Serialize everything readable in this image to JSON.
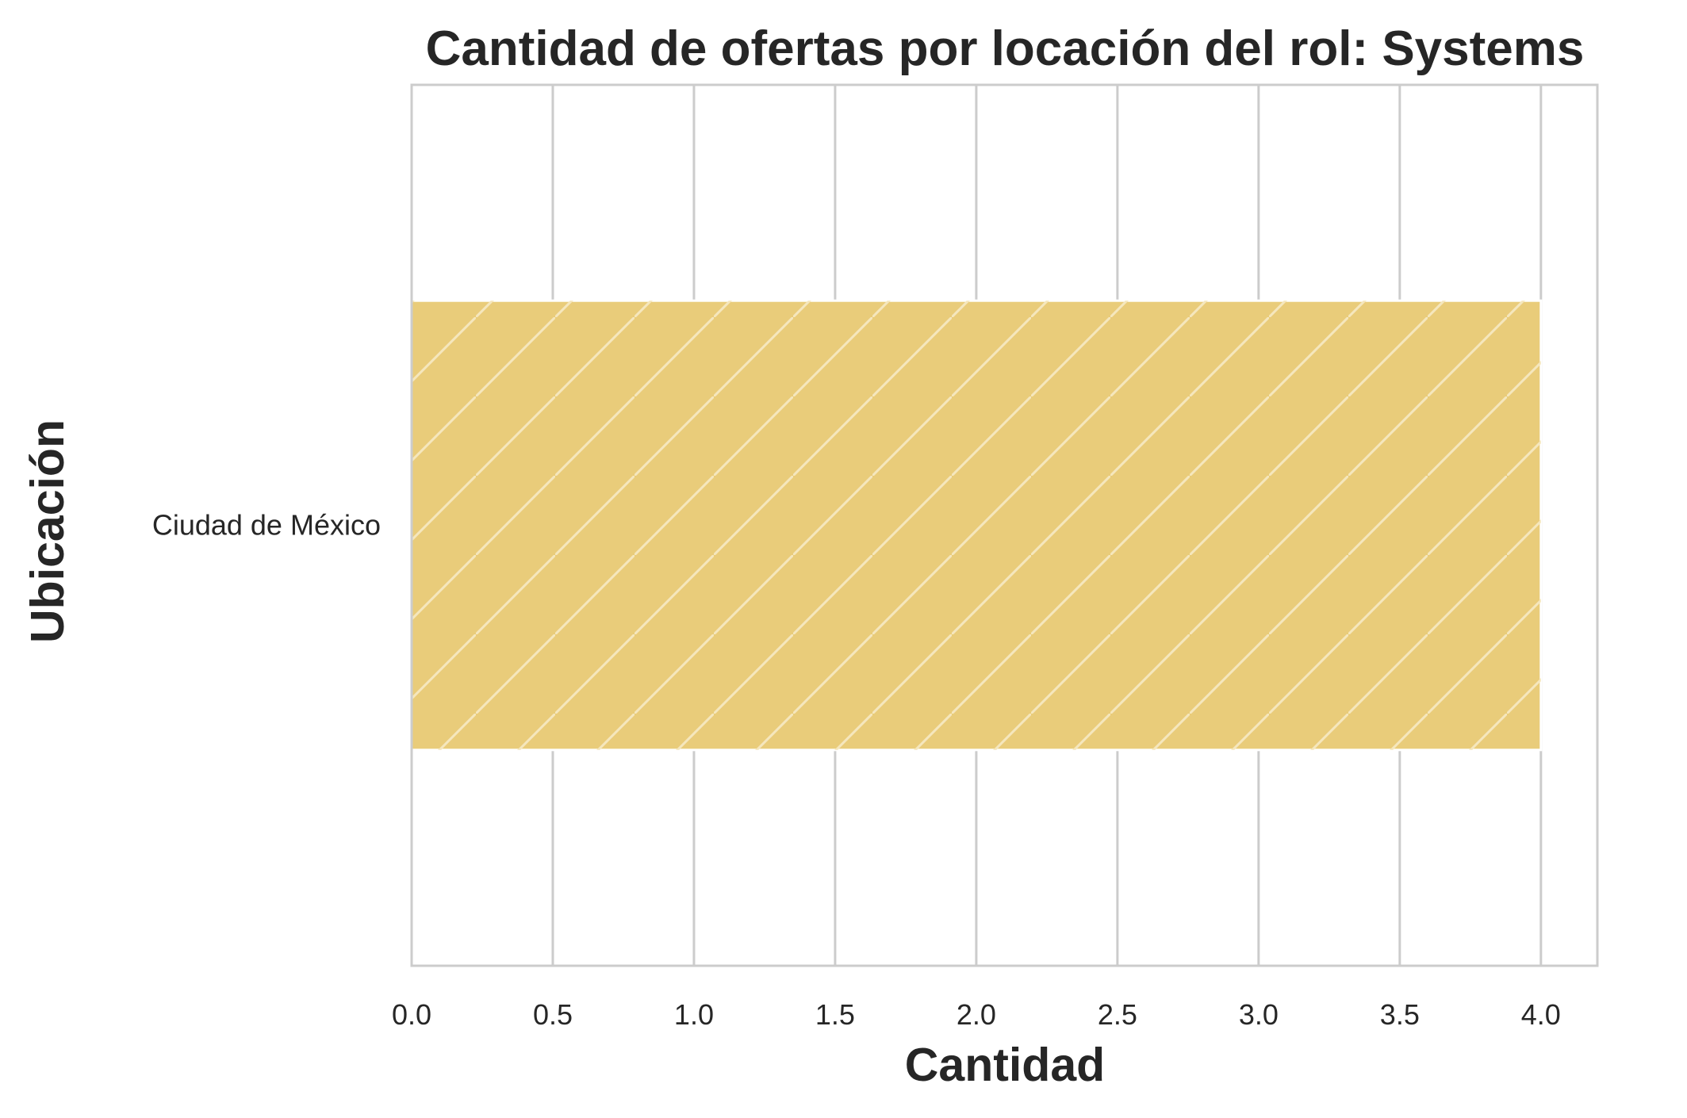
{
  "chart_data": {
    "type": "bar",
    "orientation": "horizontal",
    "title": "Cantidad de ofertas por locación del rol: Systems",
    "xlabel": "Cantidad",
    "ylabel": "Ubicación",
    "categories": [
      "Ciudad de México"
    ],
    "values": [
      4
    ],
    "xlim": [
      0,
      4.2
    ],
    "xticks": [
      "0.0",
      "0.5",
      "1.0",
      "1.5",
      "2.0",
      "2.5",
      "3.0",
      "3.5",
      "4.0"
    ],
    "grid": "vertical",
    "legend": "none",
    "colors": {
      "bar": "#e9cc7a",
      "hatch": "#f5e7bd",
      "grid": "#cccccc",
      "spine": "#cccccc",
      "text": "#262626"
    },
    "bar_hatch": "diagonal"
  }
}
